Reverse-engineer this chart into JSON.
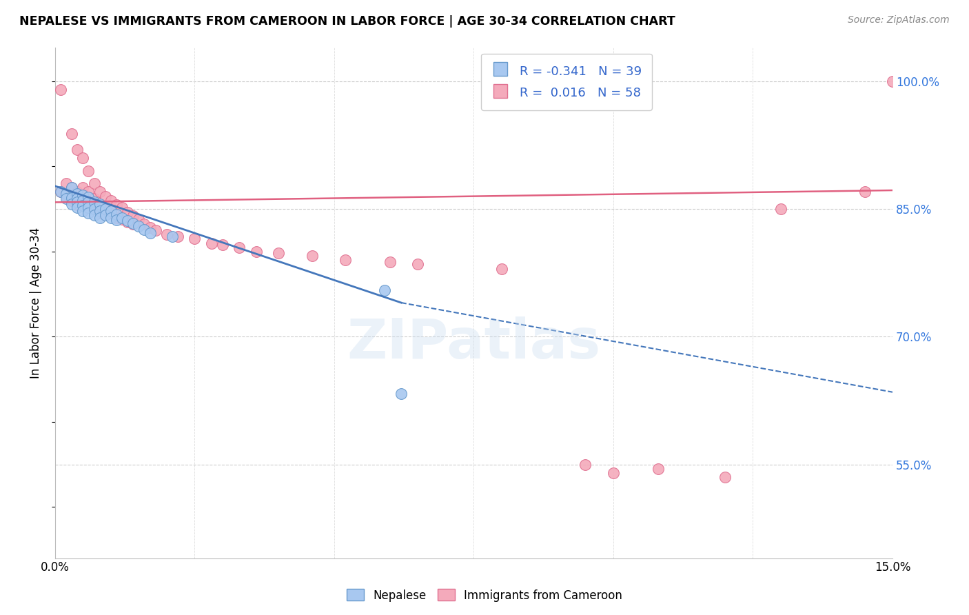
{
  "title": "NEPALESE VS IMMIGRANTS FROM CAMEROON IN LABOR FORCE | AGE 30-34 CORRELATION CHART",
  "source": "Source: ZipAtlas.com",
  "ylabel": "In Labor Force | Age 30-34",
  "yticks": [
    0.55,
    0.7,
    0.85,
    1.0
  ],
  "ytick_labels": [
    "55.0%",
    "70.0%",
    "85.0%",
    "100.0%"
  ],
  "xlim": [
    0.0,
    0.15
  ],
  "ylim": [
    0.44,
    1.04
  ],
  "legend_r_blue": "-0.341",
  "legend_n_blue": "39",
  "legend_r_pink": "0.016",
  "legend_n_pink": "58",
  "blue_color": "#A8C8F0",
  "pink_color": "#F4AABB",
  "blue_edge_color": "#6699CC",
  "pink_edge_color": "#E07090",
  "blue_line_color": "#4477BB",
  "pink_line_color": "#E06080",
  "watermark": "ZIPatlas",
  "blue_scatter_x": [
    0.001,
    0.002,
    0.002,
    0.003,
    0.003,
    0.003,
    0.004,
    0.004,
    0.004,
    0.004,
    0.005,
    0.005,
    0.005,
    0.005,
    0.006,
    0.006,
    0.006,
    0.006,
    0.007,
    0.007,
    0.007,
    0.008,
    0.008,
    0.008,
    0.009,
    0.009,
    0.01,
    0.01,
    0.011,
    0.011,
    0.012,
    0.013,
    0.014,
    0.015,
    0.016,
    0.017,
    0.021,
    0.059,
    0.062
  ],
  "blue_scatter_y": [
    0.87,
    0.868,
    0.862,
    0.875,
    0.863,
    0.856,
    0.868,
    0.862,
    0.858,
    0.852,
    0.866,
    0.86,
    0.854,
    0.848,
    0.864,
    0.858,
    0.852,
    0.845,
    0.858,
    0.85,
    0.843,
    0.856,
    0.848,
    0.84,
    0.85,
    0.843,
    0.848,
    0.84,
    0.844,
    0.837,
    0.84,
    0.836,
    0.833,
    0.83,
    0.826,
    0.822,
    0.818,
    0.755,
    0.633
  ],
  "pink_scatter_x": [
    0.001,
    0.001,
    0.002,
    0.002,
    0.003,
    0.003,
    0.003,
    0.004,
    0.004,
    0.004,
    0.005,
    0.005,
    0.005,
    0.006,
    0.006,
    0.006,
    0.007,
    0.007,
    0.007,
    0.008,
    0.008,
    0.008,
    0.009,
    0.009,
    0.01,
    0.01,
    0.011,
    0.011,
    0.012,
    0.012,
    0.013,
    0.013,
    0.014,
    0.014,
    0.015,
    0.016,
    0.017,
    0.018,
    0.02,
    0.022,
    0.025,
    0.028,
    0.03,
    0.033,
    0.036,
    0.04,
    0.046,
    0.052,
    0.06,
    0.065,
    0.08,
    0.095,
    0.1,
    0.108,
    0.12,
    0.13,
    0.145,
    0.15
  ],
  "pink_scatter_y": [
    0.99,
    0.87,
    0.88,
    0.865,
    0.938,
    0.875,
    0.86,
    0.92,
    0.87,
    0.855,
    0.91,
    0.875,
    0.86,
    0.895,
    0.87,
    0.855,
    0.88,
    0.862,
    0.85,
    0.87,
    0.855,
    0.845,
    0.865,
    0.85,
    0.86,
    0.845,
    0.855,
    0.84,
    0.852,
    0.838,
    0.846,
    0.835,
    0.842,
    0.832,
    0.838,
    0.832,
    0.828,
    0.825,
    0.82,
    0.818,
    0.815,
    0.81,
    0.808,
    0.805,
    0.8,
    0.798,
    0.795,
    0.79,
    0.788,
    0.785,
    0.78,
    0.55,
    0.54,
    0.545,
    0.535,
    0.85,
    0.87,
    1.0
  ],
  "blue_trend_x0": 0.0,
  "blue_trend_x1": 0.062,
  "blue_trend_x2": 0.15,
  "blue_trend_y0": 0.877,
  "blue_trend_y1": 0.74,
  "blue_trend_y2": 0.635,
  "pink_trend_x0": 0.0,
  "pink_trend_x1": 0.15,
  "pink_trend_y0": 0.858,
  "pink_trend_y1": 0.872
}
